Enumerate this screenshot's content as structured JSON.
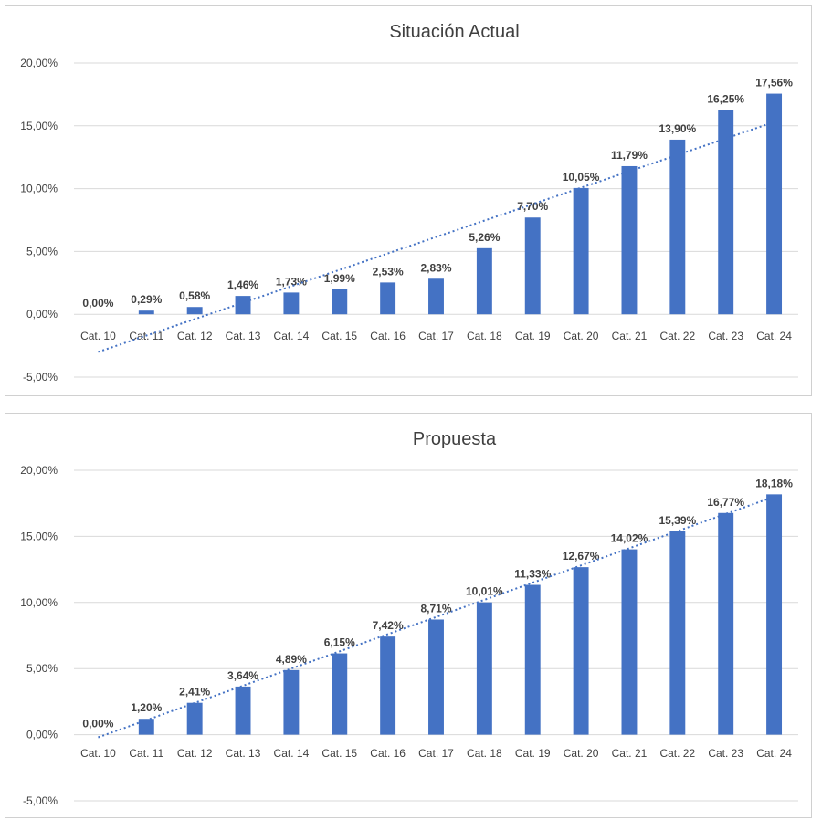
{
  "chart_data": [
    {
      "type": "bar",
      "title": "Situación Actual",
      "categories": [
        "Cat. 10",
        "Cat. 11",
        "Cat. 12",
        "Cat. 13",
        "Cat. 14",
        "Cat. 15",
        "Cat. 16",
        "Cat. 17",
        "Cat. 18",
        "Cat. 19",
        "Cat. 20",
        "Cat. 21",
        "Cat. 22",
        "Cat. 23",
        "Cat. 24"
      ],
      "values": [
        0.0,
        0.29,
        0.58,
        1.46,
        1.73,
        1.99,
        2.53,
        2.83,
        5.26,
        7.7,
        10.05,
        11.79,
        13.9,
        16.25,
        17.56
      ],
      "data_labels": [
        "0,00%",
        "0,29%",
        "0,58%",
        "1,46%",
        "1,73%",
        "1,99%",
        "2,53%",
        "2,83%",
        "5,26%",
        "7,70%",
        "10,05%",
        "11,79%",
        "13,90%",
        "16,25%",
        "17,56%"
      ],
      "yticks": [
        20,
        15,
        10,
        5,
        0,
        -5
      ],
      "ytick_labels": [
        "20,00%",
        "15,00%",
        "10,00%",
        "5,00%",
        "0,00%",
        "-5,00%"
      ],
      "ylim": [
        -5,
        20
      ],
      "trendline": {
        "type": "linear",
        "style": "dotted",
        "start": -3.0,
        "end": 15.3
      },
      "grid": true,
      "colors": {
        "bar": "#4472c4",
        "trend": "#4472c4"
      }
    },
    {
      "type": "bar",
      "title": "Propuesta",
      "categories": [
        "Cat. 10",
        "Cat. 11",
        "Cat. 12",
        "Cat. 13",
        "Cat. 14",
        "Cat. 15",
        "Cat. 16",
        "Cat. 17",
        "Cat. 18",
        "Cat. 19",
        "Cat. 20",
        "Cat. 21",
        "Cat. 22",
        "Cat. 23",
        "Cat. 24"
      ],
      "values": [
        0.0,
        1.2,
        2.41,
        3.64,
        4.89,
        6.15,
        7.42,
        8.71,
        10.01,
        11.33,
        12.67,
        14.02,
        15.39,
        16.77,
        18.18
      ],
      "data_labels": [
        "0,00%",
        "1,20%",
        "2,41%",
        "3,64%",
        "4,89%",
        "6,15%",
        "7,42%",
        "8,71%",
        "10,01%",
        "11,33%",
        "12,67%",
        "14,02%",
        "15,39%",
        "16,77%",
        "18,18%"
      ],
      "yticks": [
        20,
        15,
        10,
        5,
        0,
        -5
      ],
      "ytick_labels": [
        "20,00%",
        "15,00%",
        "10,00%",
        "5,00%",
        "0,00%",
        "-5,00%"
      ],
      "ylim": [
        -5,
        20
      ],
      "trendline": {
        "type": "linear",
        "style": "dotted",
        "start": -0.2,
        "end": 18.0
      },
      "grid": true,
      "colors": {
        "bar": "#4472c4",
        "trend": "#4472c4"
      }
    }
  ]
}
